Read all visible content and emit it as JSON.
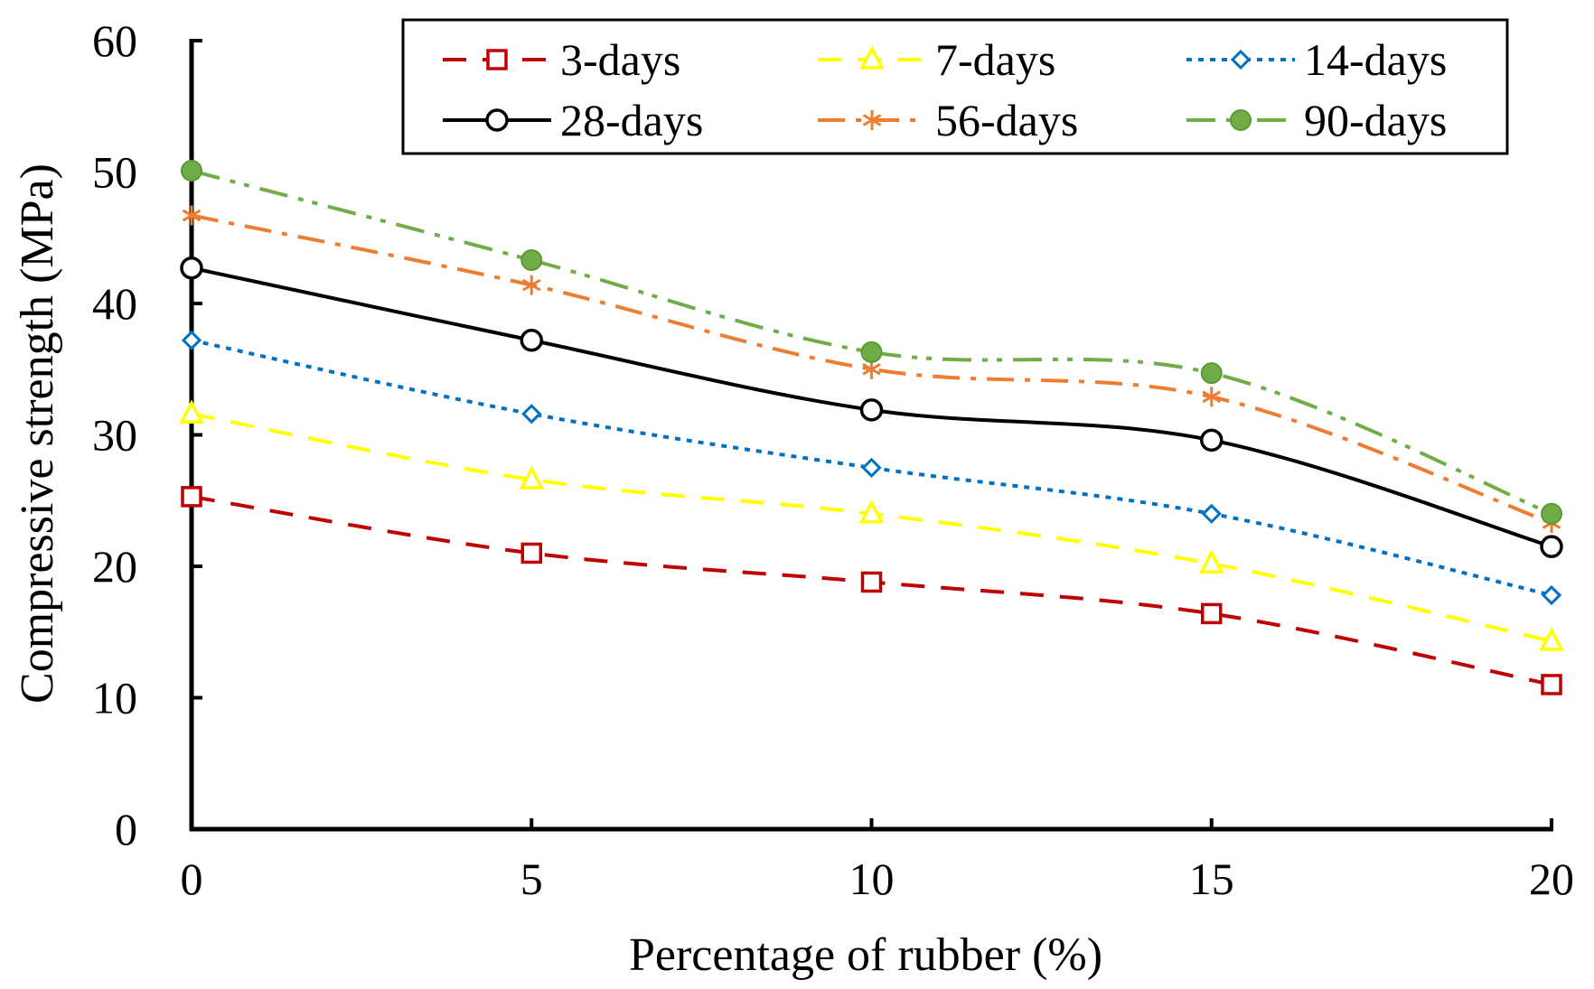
{
  "chart_data": {
    "type": "line",
    "title": "",
    "xlabel": "Percentage  of rubber (%)",
    "ylabel": "Compressive  strength (MPa)",
    "x": [
      0,
      5,
      10,
      15,
      20
    ],
    "x_tick_labels": [
      "0",
      "5",
      "10",
      "15",
      "20"
    ],
    "y_tick_labels": [
      "0",
      "10",
      "20",
      "30",
      "40",
      "50",
      "60"
    ],
    "xlim": [
      0,
      20
    ],
    "ylim": [
      0,
      60
    ],
    "grid": false,
    "legend_position": "top-right",
    "series": [
      {
        "name": "3-days",
        "values": [
          25.3,
          21.0,
          18.8,
          16.4,
          11.0
        ],
        "color": "#C00000",
        "dash": "dashed",
        "marker": "open-square"
      },
      {
        "name": "7-days",
        "values": [
          31.6,
          26.6,
          24.0,
          20.2,
          14.3
        ],
        "color": "#FFFF00",
        "dash": "dashed",
        "marker": "open-triangle"
      },
      {
        "name": "14-days",
        "values": [
          37.2,
          31.6,
          27.5,
          24.0,
          17.8
        ],
        "color": "#0070C0",
        "dash": "dotted",
        "marker": "open-diamond"
      },
      {
        "name": "28-days",
        "values": [
          42.7,
          37.2,
          31.9,
          29.6,
          21.5
        ],
        "color": "#000000",
        "dash": "solid",
        "marker": "open-circle"
      },
      {
        "name": "56-days",
        "values": [
          46.7,
          41.4,
          35.0,
          32.9,
          23.3
        ],
        "color": "#ED7D31",
        "dash": "dash-dot",
        "marker": "asterisk"
      },
      {
        "name": "90-days",
        "values": [
          50.1,
          43.3,
          36.3,
          34.7,
          24.0
        ],
        "color": "#70AD47",
        "dash": "dash-dot-dot",
        "marker": "filled-circle"
      }
    ]
  }
}
